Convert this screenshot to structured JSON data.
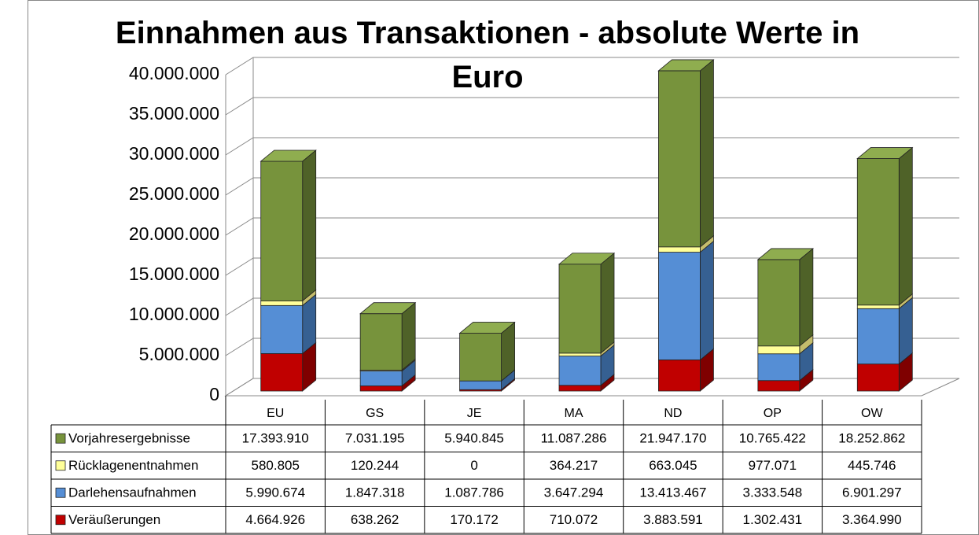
{
  "chart_data": {
    "type": "bar3d_stacked",
    "title": "Einnahmen aus Transaktionen - absolute Werte in Euro",
    "categories": [
      "EU",
      "GS",
      "JE",
      "MA",
      "ND",
      "OP",
      "OW"
    ],
    "series": [
      {
        "name": "Vorjahresergebnisse",
        "color": "#77933c",
        "side": "#4f6228",
        "top": "#8fad4f",
        "values": [
          17393910,
          7031195,
          5940845,
          11087286,
          21947170,
          10765422,
          18252862
        ],
        "value_labels": [
          "17.393.910",
          "7.031.195",
          "5.940.845",
          "11.087.286",
          "21.947.170",
          "10.765.422",
          "18.252.862"
        ]
      },
      {
        "name": "Rücklagenentnahmen",
        "color": "#ffff99",
        "side": "#c4bd6c",
        "top": "#ffffc0",
        "values": [
          580805,
          120244,
          0,
          364217,
          663045,
          977071,
          445746
        ],
        "value_labels": [
          "580.805",
          "120.244",
          "0",
          "364.217",
          "663.045",
          "977.071",
          "445.746"
        ]
      },
      {
        "name": "Darlehensaufnahmen",
        "color": "#558ed5",
        "side": "#366092",
        "top": "#7aa7e0",
        "values": [
          5990674,
          1847318,
          1087786,
          3647294,
          13413467,
          3333548,
          6901297
        ],
        "value_labels": [
          "5.990.674",
          "1.847.318",
          "1.087.786",
          "3.647.294",
          "13.413.467",
          "3.333.548",
          "6.901.297"
        ]
      },
      {
        "name": "Veräußerungen",
        "color": "#c00000",
        "side": "#7f0000",
        "top": "#d84040",
        "values": [
          4664926,
          638262,
          170172,
          710072,
          3883591,
          1302431,
          3364990
        ],
        "value_labels": [
          "4.664.926",
          "638.262",
          "170.172",
          "710.072",
          "3.883.591",
          "1.302.431",
          "3.364.990"
        ]
      }
    ],
    "ylim": [
      0,
      40000000
    ],
    "yticks": [
      0,
      {
        "value": 5000000,
        "label": "5.000.000"
      },
      {
        "value": 10000000,
        "label": "10.000.000"
      },
      {
        "value": 15000000,
        "label": "15.000.000"
      },
      {
        "value": 20000000,
        "label": "20.000.000"
      },
      {
        "value": 25000000,
        "label": "25.000.000"
      },
      {
        "value": 30000000,
        "label": "30.000.000"
      },
      {
        "value": 35000000,
        "label": "35.000.000"
      },
      {
        "value": 40000000,
        "label": "40.000.000"
      }
    ],
    "grid": true
  }
}
